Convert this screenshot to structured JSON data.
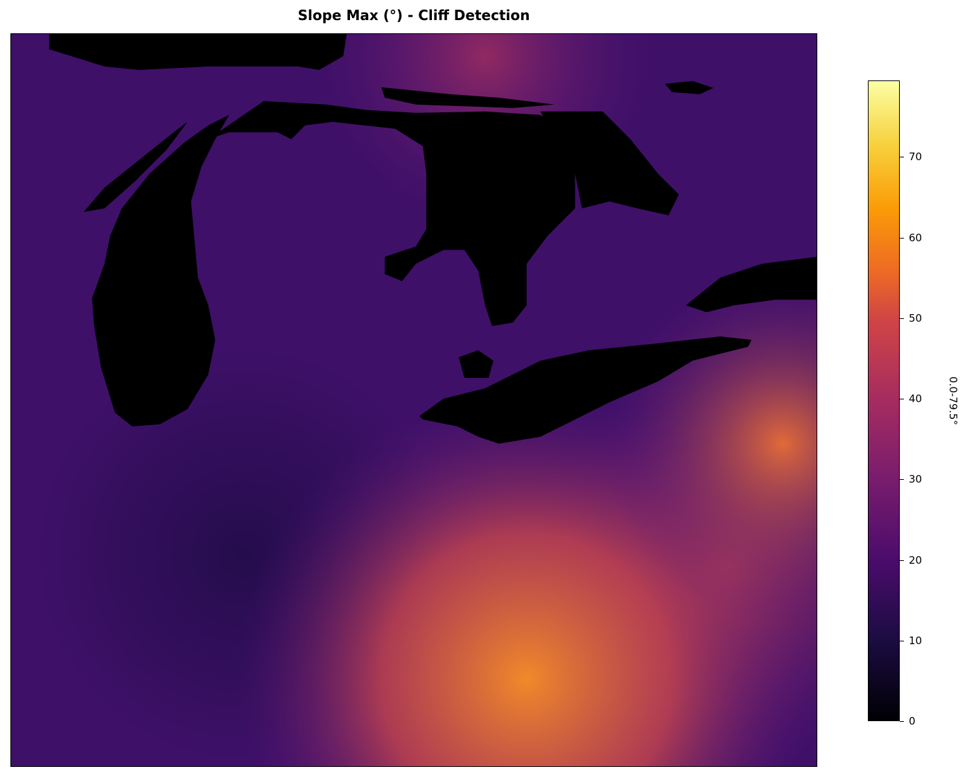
{
  "title": "Slope Max (°) - Cliff Detection",
  "colorbar": {
    "label": "0.0-79.5°",
    "colormap": "inferno",
    "range": [
      0,
      79.5
    ],
    "ticks": [
      "0",
      "10",
      "20",
      "30",
      "40",
      "50",
      "60",
      "70"
    ]
  },
  "map": {
    "region": "Great Lakes",
    "nodata_color": "#000000"
  }
}
